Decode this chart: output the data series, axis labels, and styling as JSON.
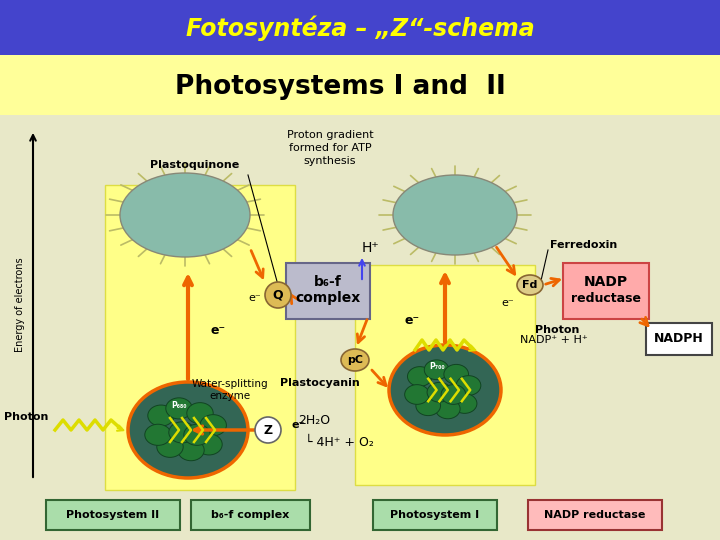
{
  "title": "Fotosyntéza – „Z“-schema",
  "title_color": "#FFFF00",
  "title_bg": "#4444CC",
  "main_bg": "#E8E8C8",
  "diagram_title": "Photosystems I and  II",
  "diagram_title_bg": "#FFFF99",
  "sun_color": "#88BBAA",
  "sun_edge": "#AABB88",
  "sun_ray_color": "#BBBB66",
  "arrow_color": "#EE6600",
  "ps_bg": "#336655",
  "chlor_color": "#227733",
  "chlor_edge": "#114422",
  "energy_label": "Energy of electrons",
  "yellow_box": "#FFFF88",
  "yellow_box_edge": "#DDDD44",
  "b6f_bg": "#BBBBCC",
  "b6f_edge": "#666688",
  "nadp_bg": "#FFAAAA",
  "nadp_edge": "#CC4444",
  "nadph_bg": "#FFFFFF",
  "nadph_edge": "#444444",
  "q_color": "#DDBB55",
  "pc_color": "#DDBB55",
  "fd_color": "#DDCC88",
  "z_color": "#FFFFFF",
  "legend_items": [
    {
      "label": "Photosystem II",
      "bg": "#AADDAA",
      "border": "#336633"
    },
    {
      "label": "b₆-f complex",
      "bg": "#AADDAA",
      "border": "#336633"
    },
    {
      "label": "Photosystem I",
      "bg": "#AADDAA",
      "border": "#336633"
    },
    {
      "label": "NADP reductase",
      "bg": "#FFBBBB",
      "border": "#993333"
    }
  ]
}
